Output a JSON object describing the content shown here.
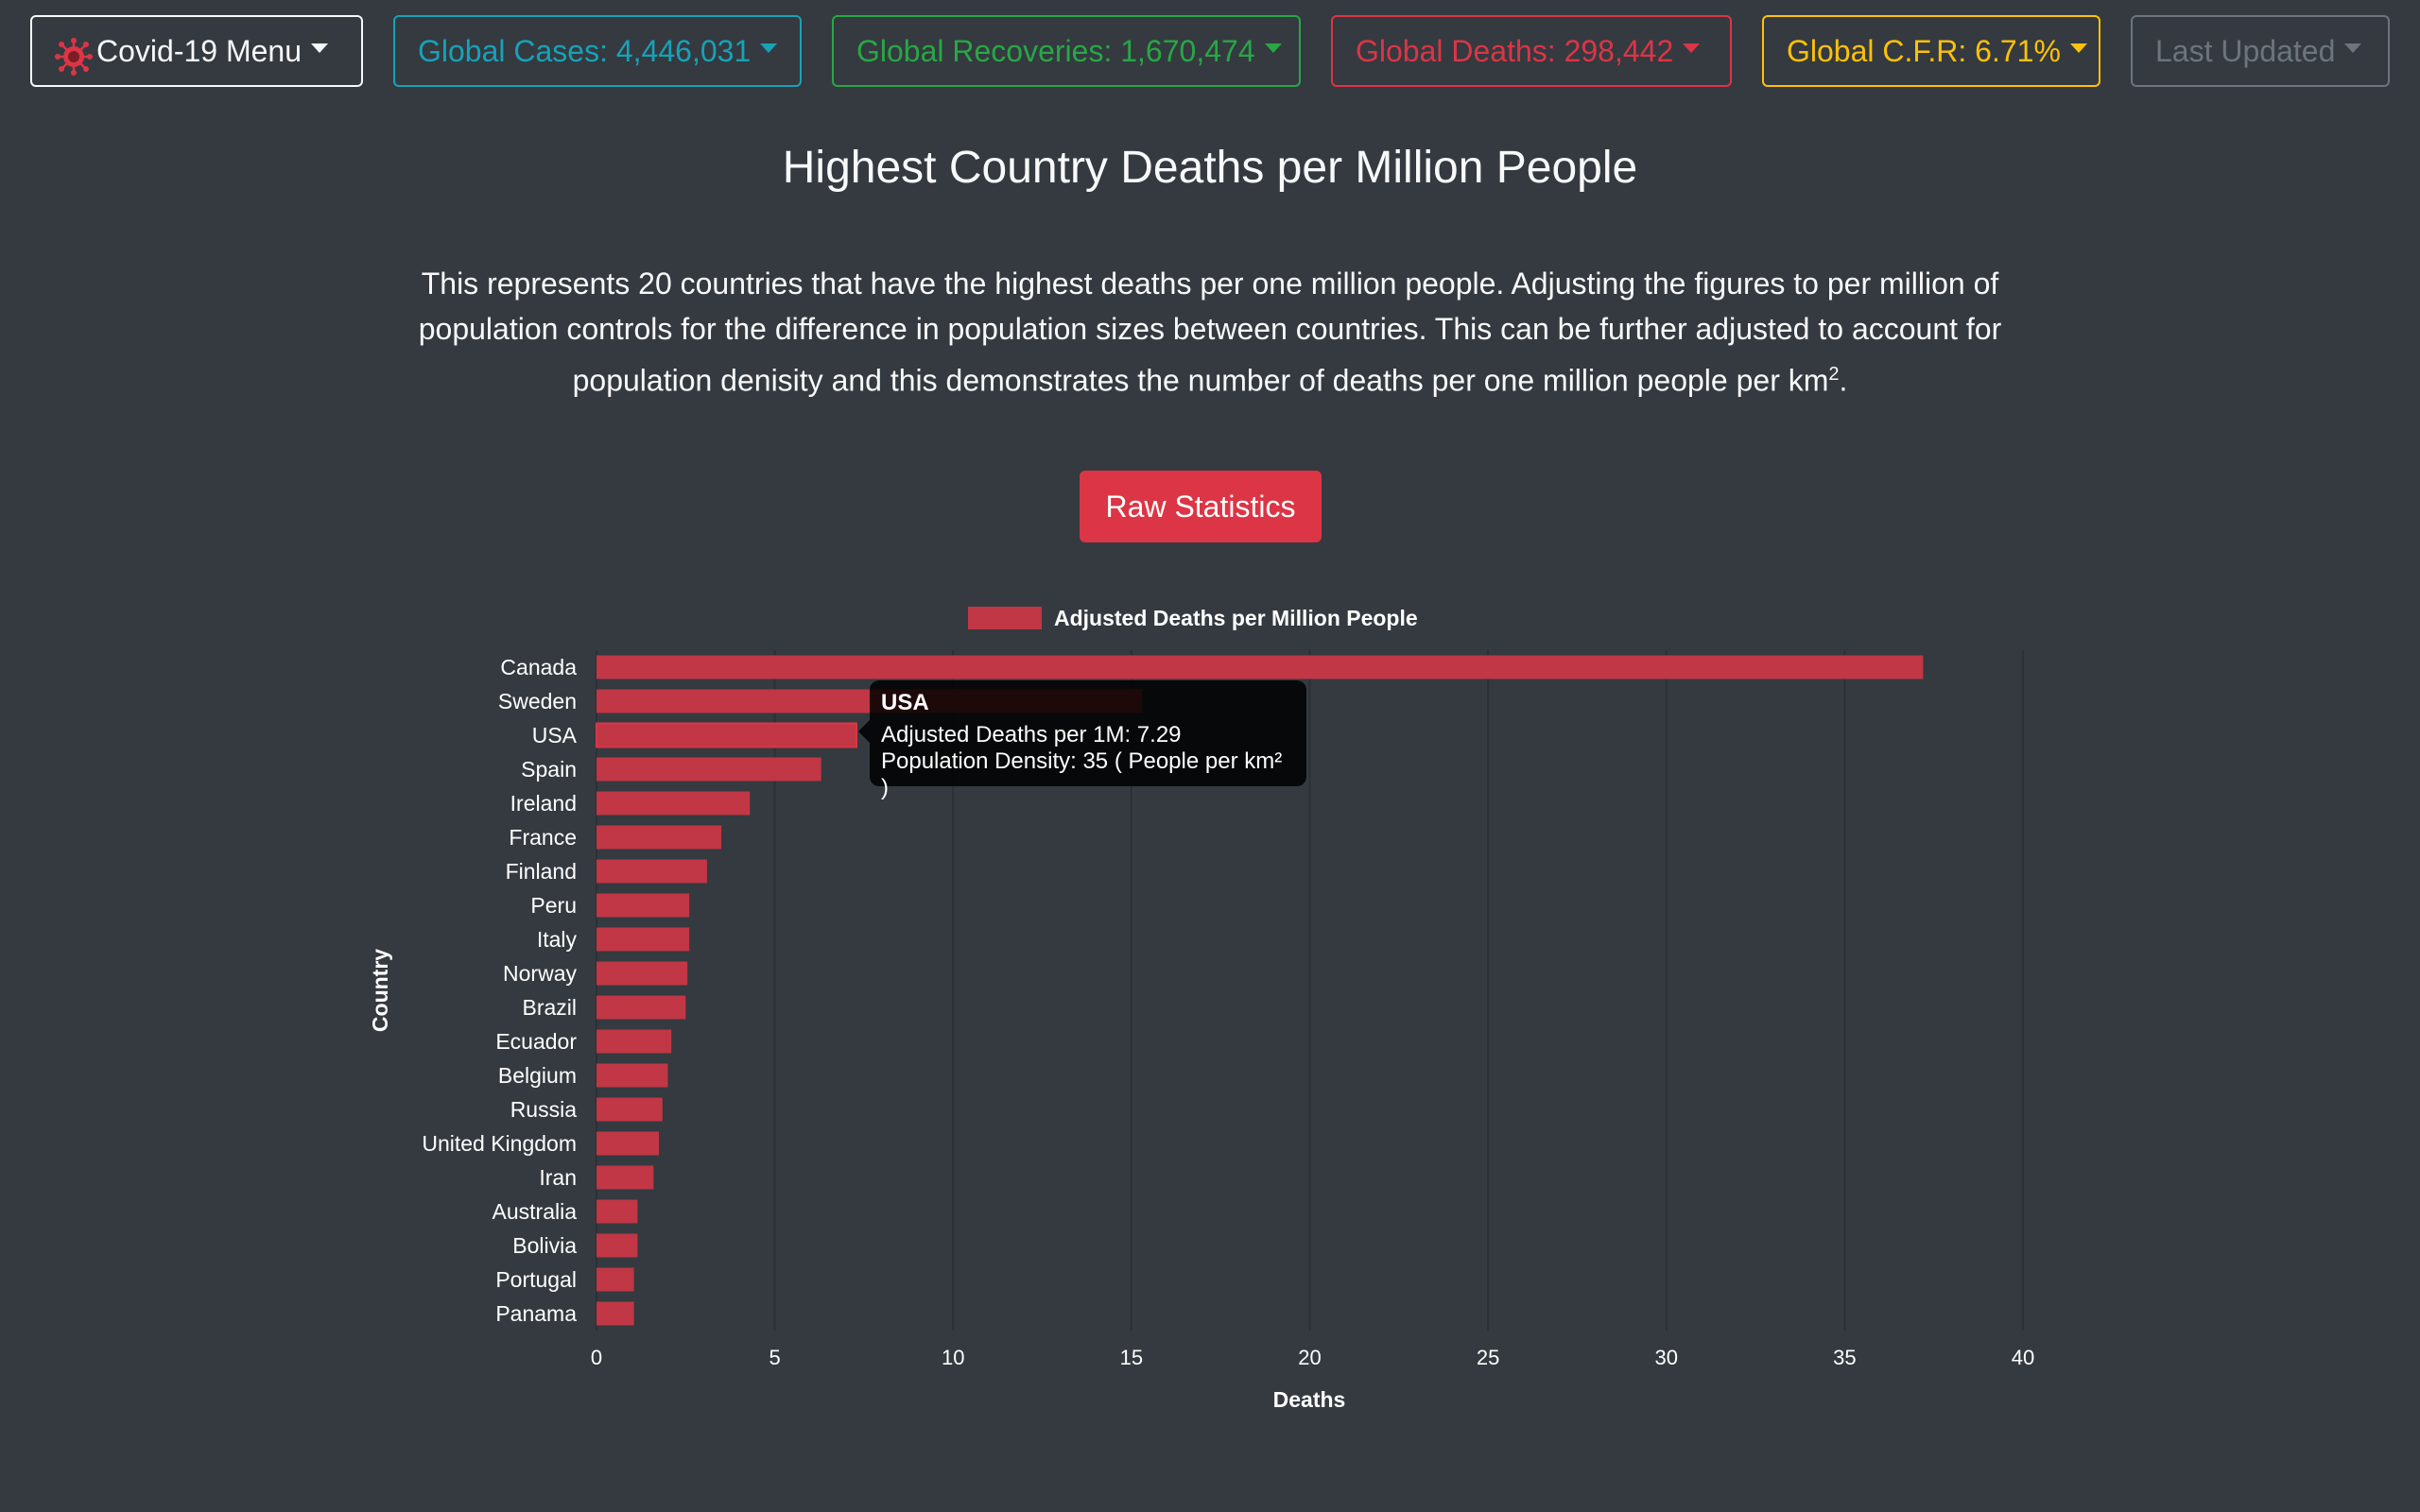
{
  "nav": {
    "menu_label": "Covid-19 Menu",
    "cases_label": "Global Cases: 4,446,031",
    "recoveries_label": "Global Recoveries: 1,670,474",
    "deaths_label": "Global Deaths: 298,442",
    "cfr_label": "Global C.F.R: 6.71%",
    "updated_label": "Last Updated"
  },
  "page": {
    "title": "Highest Country Deaths per Million People",
    "description_main": "This represents 20 countries that have the highest deaths per one million people. Adjusting the figures to per million of population controls for the difference in population sizes between countries. This can be further adjusted to account for population denisity and this demonstrates the number of deaths per one million people per km",
    "description_sup": "2",
    "description_end": ".",
    "raw_button": "Raw Statistics"
  },
  "tooltip": {
    "title": "USA",
    "line1": "Adjusted Deaths per 1M: 7.29",
    "line2": "Population Density: 35 ( People per km² )"
  },
  "colors": {
    "bar": "#c13745",
    "bar_border": "#dc3545",
    "grid": "#2b3035",
    "text": "#ffffff"
  },
  "chart_data": {
    "type": "bar",
    "orientation": "horizontal",
    "categories": [
      "Canada",
      "Sweden",
      "USA",
      "Spain",
      "Ireland",
      "France",
      "Finland",
      "Peru",
      "Italy",
      "Norway",
      "Brazil",
      "Ecuador",
      "Belgium",
      "Russia",
      "United Kingdom",
      "Iran",
      "Australia",
      "Bolivia",
      "Portugal",
      "Panama"
    ],
    "series": [
      {
        "name": "Adjusted Deaths per Million People",
        "values": [
          37.2,
          15.3,
          7.29,
          6.3,
          4.3,
          3.5,
          3.1,
          2.6,
          2.6,
          2.55,
          2.5,
          2.1,
          2.0,
          1.85,
          1.75,
          1.6,
          1.15,
          1.15,
          1.05,
          1.05
        ]
      }
    ],
    "xlabel": "Deaths",
    "ylabel": "Country",
    "xlim": [
      0,
      40
    ],
    "xticks": [
      0,
      5,
      10,
      15,
      20,
      25,
      30,
      35,
      40
    ],
    "grid": true,
    "legend": "top-center",
    "highlighted": "USA"
  }
}
